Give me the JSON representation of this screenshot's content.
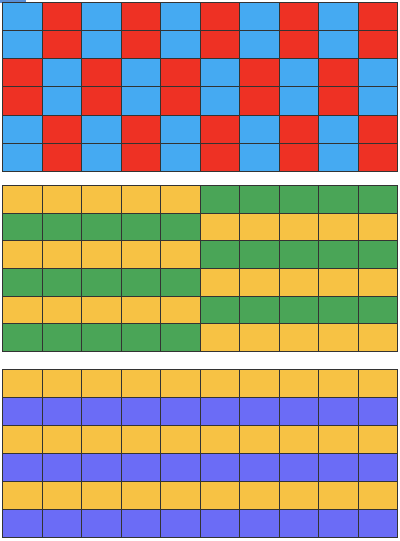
{
  "colors": {
    "red": "#ee3124",
    "blue": "#45aaf2",
    "yellow": "#f7c244",
    "green": "#4aa557",
    "purple": "#6b6cf6"
  },
  "panels": [
    {
      "name": "red-blue-checkerboard",
      "rows": [
        [
          "blue",
          "red",
          "blue",
          "red",
          "blue",
          "red",
          "blue",
          "red",
          "blue",
          "red"
        ],
        [
          "blue",
          "red",
          "blue",
          "red",
          "blue",
          "red",
          "blue",
          "red",
          "blue",
          "red"
        ],
        [
          "red",
          "blue",
          "red",
          "blue",
          "red",
          "blue",
          "red",
          "blue",
          "red",
          "blue"
        ],
        [
          "red",
          "blue",
          "red",
          "blue",
          "red",
          "blue",
          "red",
          "blue",
          "red",
          "blue"
        ],
        [
          "blue",
          "red",
          "blue",
          "red",
          "blue",
          "red",
          "blue",
          "red",
          "blue",
          "red"
        ],
        [
          "blue",
          "red",
          "blue",
          "red",
          "blue",
          "red",
          "blue",
          "red",
          "blue",
          "red"
        ]
      ]
    },
    {
      "name": "yellow-green-stripes",
      "rows": [
        [
          "yellow",
          "yellow",
          "yellow",
          "yellow",
          "yellow",
          "green",
          "green",
          "green",
          "green",
          "green"
        ],
        [
          "green",
          "green",
          "green",
          "green",
          "green",
          "yellow",
          "yellow",
          "yellow",
          "yellow",
          "yellow"
        ],
        [
          "yellow",
          "yellow",
          "yellow",
          "yellow",
          "yellow",
          "green",
          "green",
          "green",
          "green",
          "green"
        ],
        [
          "green",
          "green",
          "green",
          "green",
          "green",
          "yellow",
          "yellow",
          "yellow",
          "yellow",
          "yellow"
        ],
        [
          "yellow",
          "yellow",
          "yellow",
          "yellow",
          "yellow",
          "green",
          "green",
          "green",
          "green",
          "green"
        ],
        [
          "green",
          "green",
          "green",
          "green",
          "green",
          "yellow",
          "yellow",
          "yellow",
          "yellow",
          "yellow"
        ]
      ]
    },
    {
      "name": "yellow-purple-stripes",
      "rows": [
        [
          "yellow",
          "yellow",
          "yellow",
          "yellow",
          "yellow",
          "yellow",
          "yellow",
          "yellow",
          "yellow",
          "yellow"
        ],
        [
          "purple",
          "purple",
          "purple",
          "purple",
          "purple",
          "purple",
          "purple",
          "purple",
          "purple",
          "purple"
        ],
        [
          "yellow",
          "yellow",
          "yellow",
          "yellow",
          "yellow",
          "yellow",
          "yellow",
          "yellow",
          "yellow",
          "yellow"
        ],
        [
          "purple",
          "purple",
          "purple",
          "purple",
          "purple",
          "purple",
          "purple",
          "purple",
          "purple",
          "purple"
        ],
        [
          "yellow",
          "yellow",
          "yellow",
          "yellow",
          "yellow",
          "yellow",
          "yellow",
          "yellow",
          "yellow",
          "yellow"
        ],
        [
          "purple",
          "purple",
          "purple",
          "purple",
          "purple",
          "purple",
          "purple",
          "purple",
          "purple",
          "purple"
        ]
      ]
    }
  ]
}
